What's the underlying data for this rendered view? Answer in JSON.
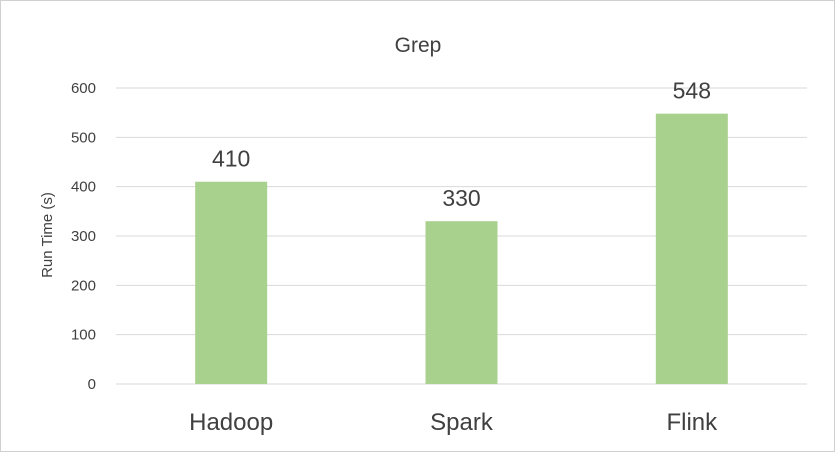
{
  "chart_data": {
    "type": "bar",
    "title": "Grep",
    "xlabel": "",
    "ylabel": "Run Time (s)",
    "categories": [
      "Hadoop",
      "Spark",
      "Flink"
    ],
    "values": [
      410,
      330,
      548
    ],
    "data_labels": [
      "410",
      "330",
      "548"
    ],
    "ylim": [
      0,
      600
    ],
    "yticks": [
      0,
      100,
      200,
      300,
      400,
      500,
      600
    ],
    "ytick_labels": [
      "0",
      "100",
      "200",
      "300",
      "400",
      "500",
      "600"
    ],
    "grid": true,
    "legend": false,
    "bar_color": "#a9d18e"
  }
}
